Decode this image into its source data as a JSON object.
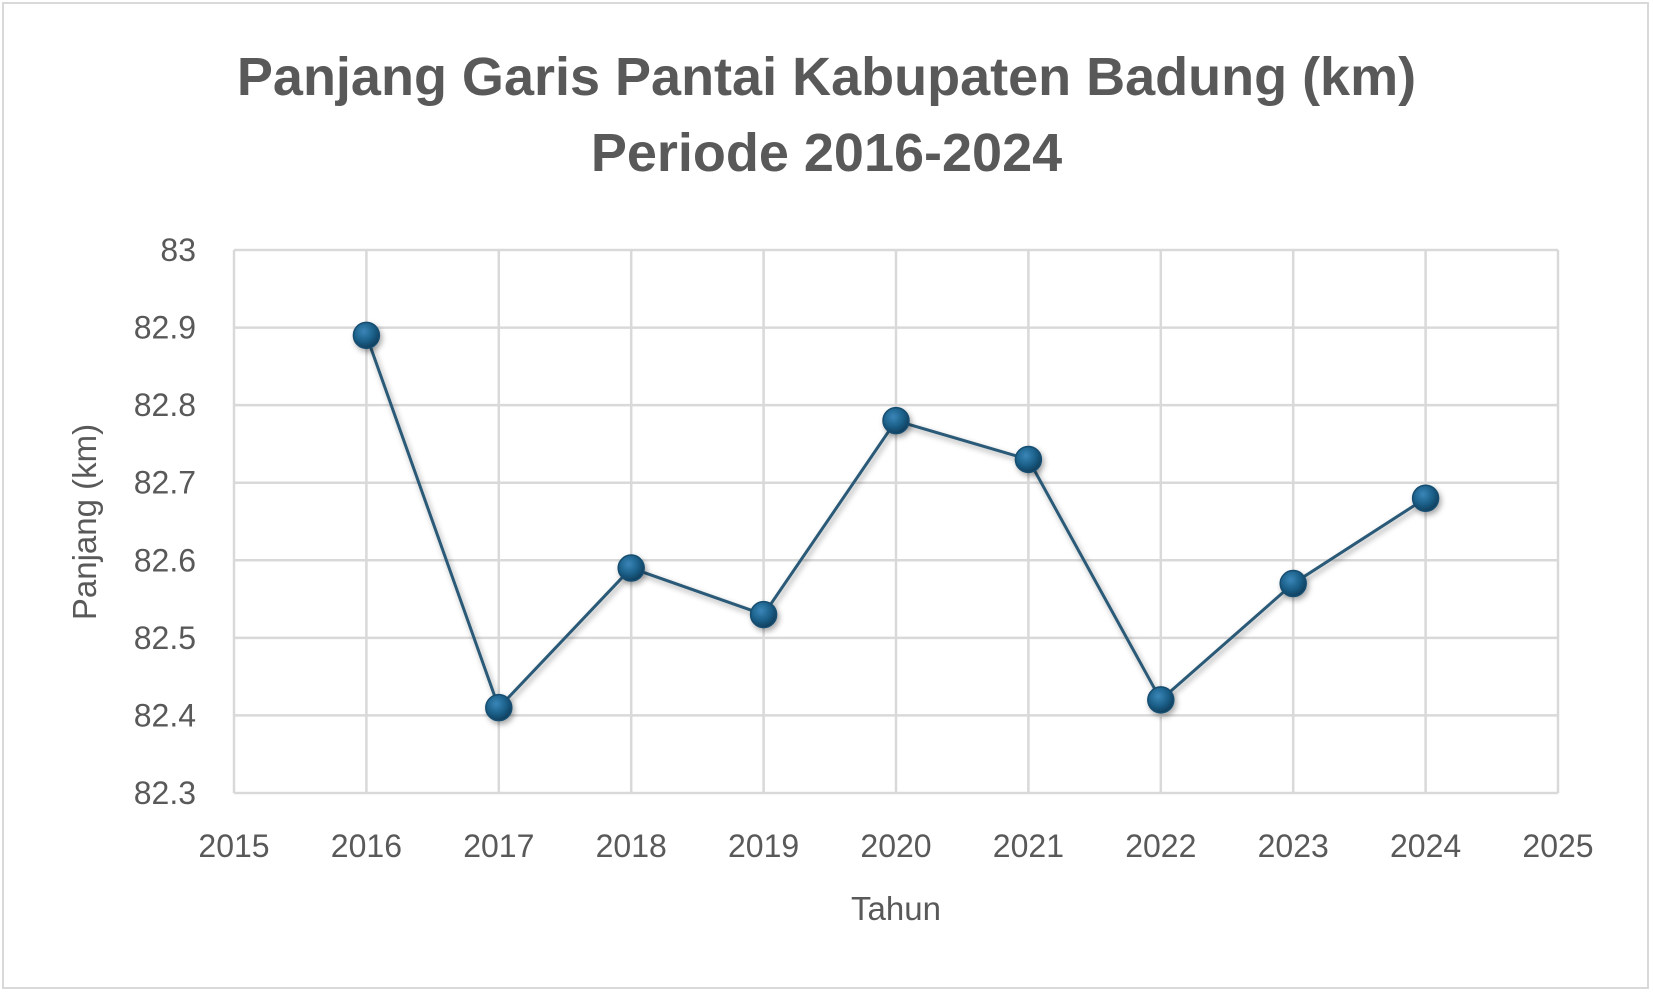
{
  "chart_data": {
    "type": "scatter",
    "title": "Panjang Garis Pantai Kabupaten Badung (km)",
    "subtitle": "Periode 2016-2024",
    "xlabel": "Tahun",
    "ylabel": "Panjang (km)",
    "xlim": [
      2015,
      2025
    ],
    "ylim": [
      82.3,
      83
    ],
    "x_ticks": [
      "2015",
      "2016",
      "2017",
      "2018",
      "2019",
      "2020",
      "2021",
      "2022",
      "2023",
      "2024",
      "2025"
    ],
    "y_ticks": [
      "82.3",
      "82.4",
      "82.5",
      "82.6",
      "82.7",
      "82.8",
      "82.9",
      "83"
    ],
    "grid": true,
    "legend": "none",
    "series": [
      {
        "x": [
          2016,
          2017,
          2018,
          2019,
          2020,
          2021,
          2022,
          2023,
          2024
        ],
        "y": [
          82.89,
          82.41,
          82.59,
          82.53,
          82.78,
          82.73,
          82.42,
          82.57,
          82.68
        ],
        "color": "#1f5f85",
        "marker_color": "#1b5f88",
        "line_color": "#2a5a77"
      }
    ]
  }
}
